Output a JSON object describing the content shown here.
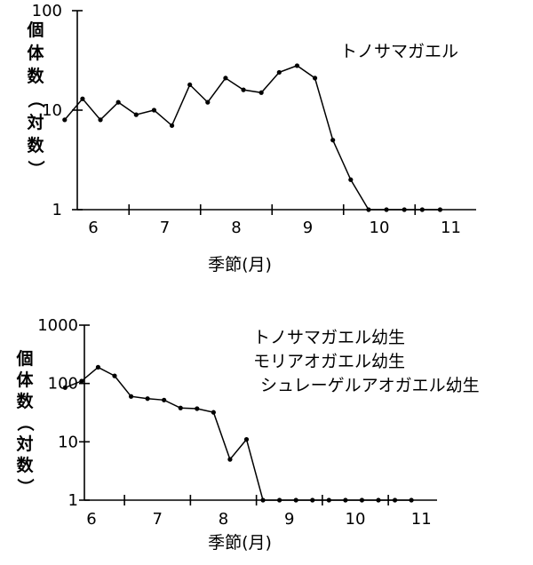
{
  "chart_data": [
    {
      "type": "line",
      "yscale": "log",
      "ylim": [
        1,
        100
      ],
      "ylabel": "個体数（対数）",
      "xlabel": "季節(月)",
      "yticks": [
        {
          "value": 1,
          "label": "1"
        },
        {
          "value": 10,
          "label": "10"
        },
        {
          "value": 100,
          "label": "100"
        }
      ],
      "xticks": [
        {
          "value": 6,
          "label": "6"
        },
        {
          "value": 7,
          "label": "7"
        },
        {
          "value": 8,
          "label": "8"
        },
        {
          "value": 9,
          "label": "9"
        },
        {
          "value": 10,
          "label": "10"
        },
        {
          "value": 11,
          "label": "11"
        }
      ],
      "annotation": [
        "トノサマガエル"
      ],
      "series": [
        {
          "x": [
            5.6,
            5.85,
            6.1,
            6.35,
            6.6,
            6.85,
            7.1,
            7.35,
            7.6,
            7.85,
            8.1,
            8.35,
            8.6,
            8.85,
            9.1,
            9.35,
            9.6,
            9.85,
            10.1,
            10.35,
            10.6,
            10.85
          ],
          "y": [
            8,
            13,
            8,
            12,
            9,
            10,
            7,
            18,
            12,
            21,
            16,
            15,
            24,
            28,
            21,
            5,
            2,
            1,
            1,
            1,
            1,
            1
          ]
        }
      ]
    },
    {
      "type": "line",
      "yscale": "log",
      "ylim": [
        1,
        1000
      ],
      "ylabel": "個体数（対数）",
      "xlabel": "季節(月)",
      "yticks": [
        {
          "value": 1,
          "label": "1"
        },
        {
          "value": 10,
          "label": "10"
        },
        {
          "value": 100,
          "label": "100"
        },
        {
          "value": 1000,
          "label": "1000"
        }
      ],
      "xticks": [
        {
          "value": 6,
          "label": "6"
        },
        {
          "value": 7,
          "label": "7"
        },
        {
          "value": 8,
          "label": "8"
        },
        {
          "value": 9,
          "label": "9"
        },
        {
          "value": 10,
          "label": "10"
        },
        {
          "value": 11,
          "label": "11"
        }
      ],
      "annotation": [
        "トノサマガエル幼生",
        "モリアオガエル幼生",
        "シュレーゲルアオガエル幼生"
      ],
      "series": [
        {
          "x": [
            5.6,
            5.85,
            6.1,
            6.35,
            6.6,
            6.85,
            7.1,
            7.35,
            7.6,
            7.85,
            8.1,
            8.35,
            8.6,
            8.85,
            9.1,
            9.35,
            9.6,
            9.85,
            10.1,
            10.35,
            10.6,
            10.85
          ],
          "y": [
            85,
            110,
            190,
            135,
            60,
            55,
            52,
            38,
            37,
            32,
            5,
            11,
            1,
            1,
            1,
            1,
            1,
            1,
            1,
            1,
            1,
            1
          ]
        }
      ]
    }
  ]
}
